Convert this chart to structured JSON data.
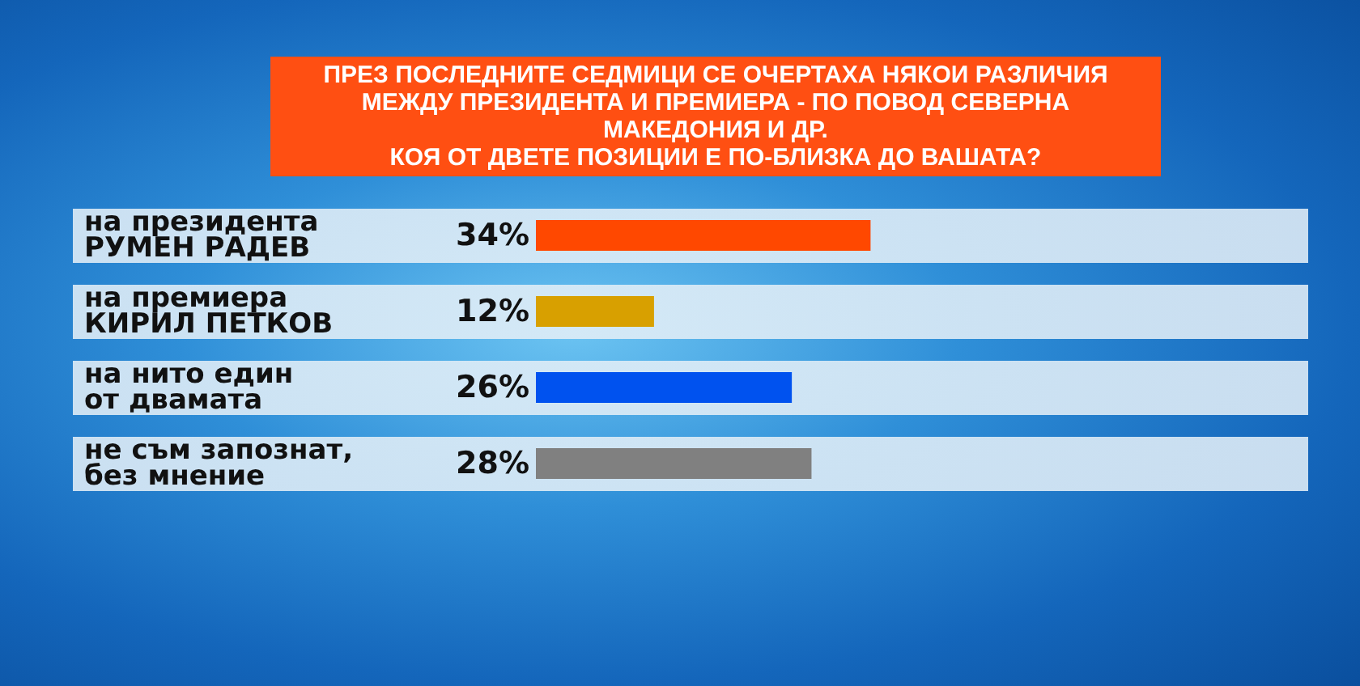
{
  "chart_data": {
    "type": "bar",
    "orientation": "horizontal",
    "title": "ПРЕЗ ПОСЛЕДНИТЕ СЕДМИЦИ СЕ ОЧЕРТАХА НЯКОИ РАЗЛИЧИЯ МЕЖДУ ПРЕЗИДЕНТА И ПРЕМИЕРА - ПО ПОВОД СЕВЕРНА МАКЕДОНИЯ И ДР.",
    "subtitle": "КОЯ ОТ ДВЕТЕ ПОЗИЦИИ Е ПО-БЛИЗКА ДО ВАШАТА?",
    "categories": [
      "на президента\nРУМЕН РАДЕВ",
      "на премиера\nКИРИЛ ПЕТКОВ",
      "на нито един\nот двамата",
      "не съм запознат,\nбез мнение"
    ],
    "values": [
      34,
      12,
      26,
      28
    ],
    "colors": [
      "#ff4800",
      "#d8a000",
      "#0052ef",
      "#808080"
    ],
    "value_labels": [
      "34%",
      "12%",
      "26%",
      "28%"
    ],
    "tick_labels": "y"
  }
}
